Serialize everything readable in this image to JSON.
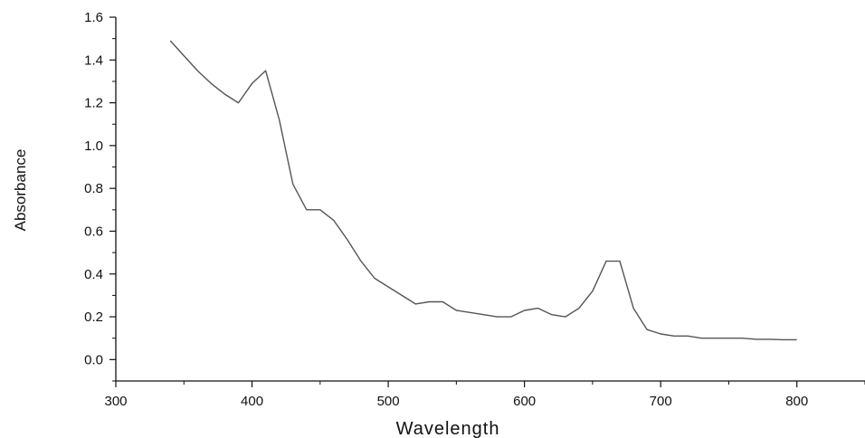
{
  "chart_data": {
    "type": "line",
    "title": "",
    "xlabel": "Wavelength",
    "ylabel": "Absorbance",
    "xlim": [
      300,
      850
    ],
    "ylim": [
      -0.1,
      1.6
    ],
    "xticks": [
      300,
      400,
      500,
      600,
      700,
      800
    ],
    "xtick_labels": [
      "300",
      "400",
      "500",
      "600",
      "700",
      "800"
    ],
    "yticks": [
      0.0,
      0.2,
      0.4,
      0.6,
      0.8,
      1.0,
      1.2,
      1.4,
      1.6
    ],
    "ytick_labels": [
      "0.0",
      "0.2",
      "0.4",
      "0.6",
      "0.8",
      "1.0",
      "1.2",
      "1.4",
      "1.6"
    ],
    "grid": false,
    "legend": "none",
    "line_color": "#555555",
    "axis_color": "#111111",
    "series": [
      {
        "x": [
          340,
          350,
          360,
          370,
          380,
          390,
          400,
          410,
          420,
          430,
          440,
          450,
          460,
          470,
          480,
          490,
          500,
          510,
          520,
          530,
          540,
          550,
          560,
          570,
          580,
          590,
          600,
          610,
          620,
          630,
          640,
          650,
          660,
          670,
          680,
          690,
          700,
          710,
          720,
          730,
          740,
          750,
          760,
          770,
          780,
          790,
          800
        ],
        "y": [
          1.49,
          1.42,
          1.35,
          1.29,
          1.24,
          1.2,
          1.29,
          1.35,
          1.12,
          0.82,
          0.7,
          0.7,
          0.65,
          0.56,
          0.46,
          0.38,
          0.34,
          0.3,
          0.26,
          0.27,
          0.27,
          0.23,
          0.22,
          0.21,
          0.2,
          0.2,
          0.23,
          0.24,
          0.21,
          0.2,
          0.24,
          0.32,
          0.46,
          0.46,
          0.24,
          0.14,
          0.12,
          0.11,
          0.11,
          0.1,
          0.1,
          0.1,
          0.1,
          0.095,
          0.095,
          0.093,
          0.093
        ]
      }
    ]
  }
}
